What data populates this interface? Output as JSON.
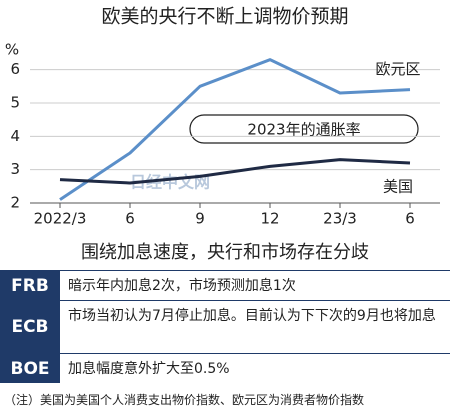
{
  "chart_data": {
    "type": "line",
    "title": "欧美的央行不断上调物价预期",
    "y_unit": "%",
    "annotation": "2023年的通胀率",
    "watermark": "日经中文网",
    "categories": [
      "2022/3",
      "6",
      "9",
      "12",
      "23/3",
      "6"
    ],
    "series": [
      {
        "name": "欧元区",
        "color": "#5b8fc9",
        "values": [
          2.1,
          3.5,
          5.5,
          6.3,
          5.3,
          5.4
        ]
      },
      {
        "name": "美国",
        "color": "#1f2a44",
        "values": [
          2.7,
          2.6,
          2.8,
          3.1,
          3.3,
          3.2
        ]
      }
    ],
    "ylim": [
      2,
      6.5
    ],
    "yticks": [
      2,
      3,
      4,
      5,
      6
    ],
    "grid": true
  },
  "table": {
    "title": "围绕加息速度，央行和市场存在分歧",
    "rows": [
      [
        "FRB",
        "暗示年内加息2次，市场预测加息1次"
      ],
      [
        "ECB",
        "市场当初认为7月停止加息。目前认为下下次的9月也将加息"
      ],
      [
        "BOE",
        "加息幅度意外扩大至0.5%"
      ]
    ],
    "note": "（注）美国为美国个人消费支出物价指数、欧元区为消费者物价指数"
  }
}
